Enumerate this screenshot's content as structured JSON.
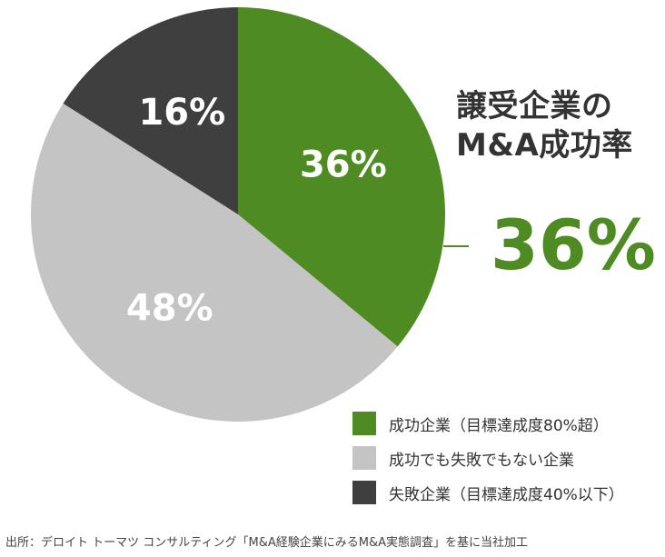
{
  "chart_data": {
    "type": "pie",
    "title": "譲受企業のM&A成功率",
    "title_lines": [
      "譲受企業の",
      "M&A成功率"
    ],
    "highlight_value": "36%",
    "slices": [
      {
        "label": "成功企業（目標達成度80%超）",
        "value": 36,
        "display": "36%",
        "color": "#4f8b23"
      },
      {
        "label": "成功でも失敗でもない企業",
        "value": 48,
        "display": "48%",
        "color": "#c4c4c4"
      },
      {
        "label": "失敗企業（目標達成度40%以下）",
        "value": 16,
        "display": "16%",
        "color": "#3f3f3f"
      }
    ]
  },
  "source": "出所：デロイト トーマツ コンサルティング「M&A経験企業にみるM&A実態調査」を基に当社加工"
}
